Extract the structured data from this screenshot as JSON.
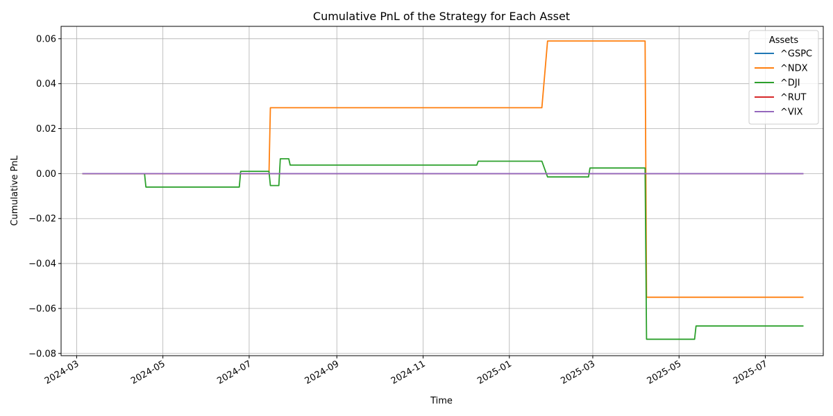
{
  "chart_data": {
    "type": "line",
    "title": "Cumulative PnL of the Strategy for Each Asset",
    "xlabel": "Time",
    "ylabel": "Cumulative PnL",
    "xlim": [
      "2024-02-19",
      "2025-08-11"
    ],
    "ylim": [
      -0.081,
      0.0655
    ],
    "x_ticks": [
      {
        "date": "2024-03-01",
        "label": "2024-03"
      },
      {
        "date": "2024-05-01",
        "label": "2024-05"
      },
      {
        "date": "2024-07-01",
        "label": "2024-07"
      },
      {
        "date": "2024-09-01",
        "label": "2024-09"
      },
      {
        "date": "2024-11-01",
        "label": "2024-11"
      },
      {
        "date": "2025-01-01",
        "label": "2025-01"
      },
      {
        "date": "2025-03-01",
        "label": "2025-03"
      },
      {
        "date": "2025-05-01",
        "label": "2025-05"
      },
      {
        "date": "2025-07-01",
        "label": "2025-07"
      }
    ],
    "y_ticks": [
      {
        "value": 0.06,
        "label": "0.06"
      },
      {
        "value": 0.04,
        "label": "0.04"
      },
      {
        "value": 0.02,
        "label": "0.02"
      },
      {
        "value": 0.0,
        "label": "0.00"
      },
      {
        "value": -0.02,
        "label": "−0.02"
      },
      {
        "value": -0.04,
        "label": "−0.04"
      },
      {
        "value": -0.06,
        "label": "−0.06"
      },
      {
        "value": -0.08,
        "label": "−0.08"
      }
    ],
    "grid": true,
    "legend": {
      "title": "Assets",
      "placement": "top-right"
    },
    "series": [
      {
        "name": "^GSPC",
        "color": "#1f77b4",
        "points": [
          [
            "2024-03-05",
            0.0
          ],
          [
            "2025-07-28",
            0.0
          ]
        ]
      },
      {
        "name": "^NDX",
        "color": "#ff7f0e",
        "points": [
          [
            "2024-03-05",
            0.0
          ],
          [
            "2024-07-15",
            0.0
          ],
          [
            "2024-07-16",
            0.0293
          ],
          [
            "2025-01-24",
            0.0293
          ],
          [
            "2025-01-28",
            0.059
          ],
          [
            "2025-04-07",
            0.059
          ],
          [
            "2025-04-08",
            -0.055
          ],
          [
            "2025-07-28",
            -0.055
          ]
        ]
      },
      {
        "name": "^DJI",
        "color": "#2ca02c",
        "points": [
          [
            "2024-03-05",
            0.0
          ],
          [
            "2024-04-18",
            0.0
          ],
          [
            "2024-04-19",
            -0.006
          ],
          [
            "2024-06-24",
            -0.006
          ],
          [
            "2024-06-25",
            0.001
          ],
          [
            "2024-07-15",
            0.001
          ],
          [
            "2024-07-16",
            -0.0053
          ],
          [
            "2024-07-22",
            -0.0053
          ],
          [
            "2024-07-23",
            0.0066
          ],
          [
            "2024-07-29",
            0.0066
          ],
          [
            "2024-07-30",
            0.0038
          ],
          [
            "2024-12-09",
            0.0038
          ],
          [
            "2024-12-10",
            0.0055
          ],
          [
            "2025-01-24",
            0.0055
          ],
          [
            "2025-01-28",
            -0.0015
          ],
          [
            "2025-02-26",
            -0.0015
          ],
          [
            "2025-02-27",
            0.0025
          ],
          [
            "2025-04-07",
            0.0025
          ],
          [
            "2025-04-08",
            -0.0737
          ],
          [
            "2025-05-12",
            -0.0737
          ],
          [
            "2025-05-13",
            -0.0678
          ],
          [
            "2025-07-28",
            -0.0678
          ]
        ]
      },
      {
        "name": "^RUT",
        "color": "#d62728",
        "points": [
          [
            "2024-03-05",
            0.0
          ],
          [
            "2025-07-28",
            0.0
          ]
        ]
      },
      {
        "name": "^VIX",
        "color": "#9467bd",
        "points": [
          [
            "2024-03-05",
            0.0
          ],
          [
            "2025-07-28",
            0.0
          ]
        ]
      }
    ]
  }
}
